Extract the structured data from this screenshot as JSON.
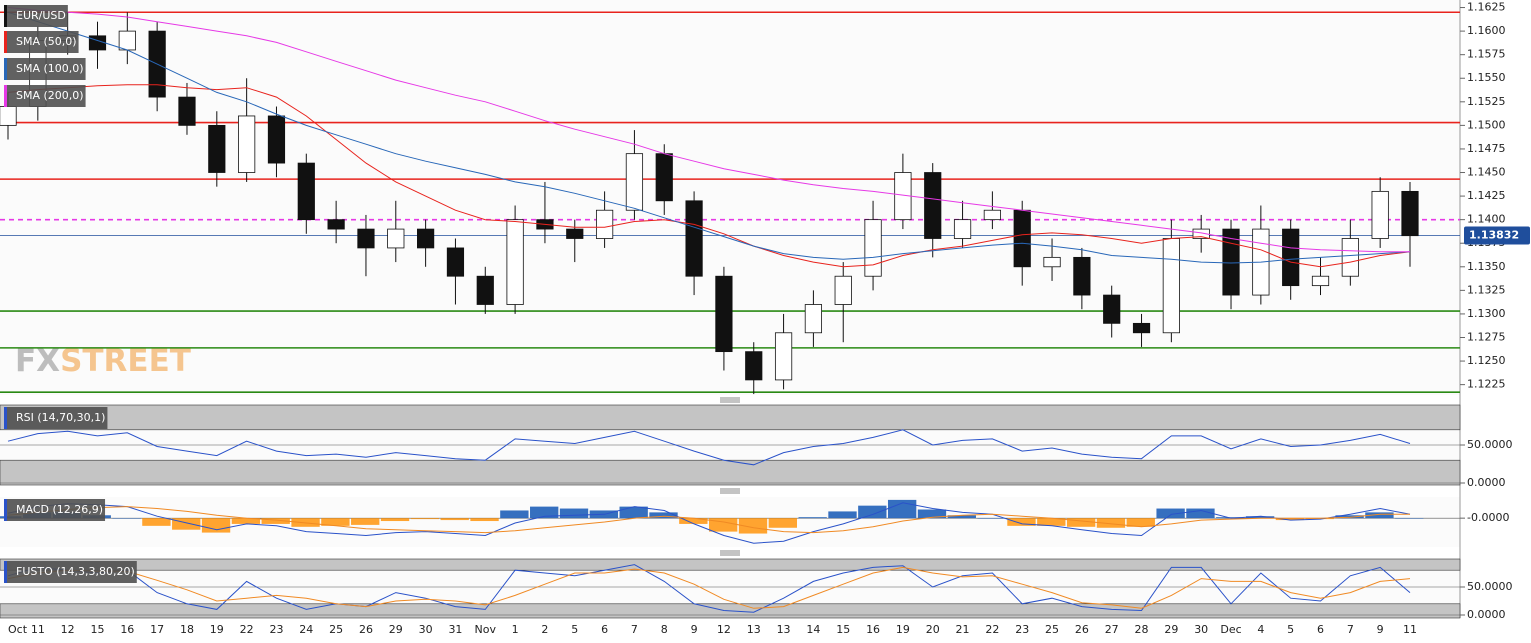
{
  "chart_data": [
    {
      "type": "candlestick",
      "title": "EUR/USD",
      "categories": [
        "Oct",
        "11",
        "12",
        "15",
        "16",
        "17",
        "18",
        "19",
        "22",
        "23",
        "24",
        "25",
        "26",
        "29",
        "30",
        "31",
        "Nov",
        "1",
        "2",
        "5",
        "6",
        "7",
        "8",
        "9",
        "12",
        "13",
        "13",
        "14",
        "15",
        "16",
        "19",
        "20",
        "21",
        "22",
        "23",
        "25",
        "26",
        "27",
        "28",
        "29",
        "30",
        "Dec",
        "4",
        "5",
        "6",
        "7",
        "9",
        "11"
      ],
      "open": [
        1.15,
        1.152,
        1.159,
        1.1595,
        1.158,
        1.16,
        1.153,
        1.15,
        1.145,
        1.151,
        1.146,
        1.14,
        1.139,
        1.137,
        1.139,
        1.137,
        1.134,
        1.131,
        1.14,
        1.139,
        1.138,
        1.141,
        1.147,
        1.142,
        1.134,
        1.126,
        1.123,
        1.128,
        1.131,
        1.134,
        1.14,
        1.145,
        1.138,
        1.14,
        1.141,
        1.135,
        1.136,
        1.132,
        1.129,
        1.128,
        1.138,
        1.139,
        1.132,
        1.139,
        1.133,
        1.134,
        1.138,
        1.143
      ],
      "high": [
        1.1535,
        1.1605,
        1.162,
        1.161,
        1.162,
        1.161,
        1.1545,
        1.1515,
        1.155,
        1.152,
        1.147,
        1.142,
        1.1405,
        1.142,
        1.14,
        1.138,
        1.135,
        1.1415,
        1.144,
        1.14,
        1.143,
        1.1495,
        1.148,
        1.143,
        1.135,
        1.127,
        1.13,
        1.1325,
        1.1355,
        1.142,
        1.147,
        1.146,
        1.142,
        1.143,
        1.142,
        1.138,
        1.137,
        1.133,
        1.13,
        1.14,
        1.1405,
        1.14,
        1.1415,
        1.14,
        1.136,
        1.14,
        1.1445,
        1.144
      ],
      "low": [
        1.1485,
        1.1505,
        1.1575,
        1.156,
        1.1565,
        1.1515,
        1.149,
        1.1435,
        1.144,
        1.1445,
        1.1385,
        1.1375,
        1.134,
        1.1355,
        1.135,
        1.131,
        1.13,
        1.13,
        1.1375,
        1.1355,
        1.137,
        1.14,
        1.1405,
        1.132,
        1.124,
        1.1215,
        1.122,
        1.1265,
        1.127,
        1.1325,
        1.139,
        1.136,
        1.137,
        1.139,
        1.133,
        1.1335,
        1.1305,
        1.1275,
        1.1265,
        1.127,
        1.1365,
        1.1305,
        1.131,
        1.1315,
        1.132,
        1.133,
        1.137,
        1.135
      ],
      "close": [
        1.152,
        1.159,
        1.1595,
        1.158,
        1.16,
        1.153,
        1.15,
        1.145,
        1.151,
        1.146,
        1.14,
        1.139,
        1.137,
        1.139,
        1.137,
        1.134,
        1.131,
        1.14,
        1.139,
        1.138,
        1.141,
        1.147,
        1.142,
        1.134,
        1.126,
        1.123,
        1.128,
        1.131,
        1.134,
        1.14,
        1.145,
        1.138,
        1.14,
        1.141,
        1.135,
        1.136,
        1.132,
        1.129,
        1.128,
        1.138,
        1.139,
        1.132,
        1.139,
        1.133,
        1.134,
        1.138,
        1.143,
        1.1383
      ],
      "up_color": "#ffffff",
      "down_color": "#111111",
      "series": [
        {
          "name": "SMA (50,0)",
          "color": "#e8231d",
          "values": [
            1.1535,
            1.1538,
            1.154,
            1.1542,
            1.1543,
            1.1543,
            1.154,
            1.1538,
            1.154,
            1.153,
            1.151,
            1.1485,
            1.146,
            1.144,
            1.1425,
            1.141,
            1.14,
            1.1398,
            1.1395,
            1.1392,
            1.1392,
            1.1398,
            1.14,
            1.1395,
            1.1385,
            1.1372,
            1.1362,
            1.1355,
            1.135,
            1.1352,
            1.1362,
            1.1368,
            1.1372,
            1.1378,
            1.1384,
            1.1386,
            1.1384,
            1.138,
            1.1375,
            1.138,
            1.1382,
            1.1375,
            1.1368,
            1.1355,
            1.135,
            1.1355,
            1.1362,
            1.1366
          ]
        },
        {
          "name": "SMA (100,0)",
          "color": "#2867b8",
          "values": [
            1.162,
            1.161,
            1.16,
            1.159,
            1.158,
            1.1565,
            1.155,
            1.1535,
            1.1525,
            1.1512,
            1.15,
            1.149,
            1.148,
            1.147,
            1.1462,
            1.1455,
            1.1448,
            1.144,
            1.1435,
            1.1428,
            1.142,
            1.1412,
            1.1402,
            1.1392,
            1.1382,
            1.1372,
            1.1364,
            1.136,
            1.1358,
            1.136,
            1.1364,
            1.1367,
            1.137,
            1.1373,
            1.1375,
            1.1372,
            1.1368,
            1.1362,
            1.136,
            1.1358,
            1.1355,
            1.1354,
            1.1355,
            1.1358,
            1.136,
            1.1362,
            1.1364,
            1.1366
          ]
        },
        {
          "name": "SMA (200,0)",
          "color": "#e639e6",
          "values": [
            1.1625,
            1.1622,
            1.162,
            1.1618,
            1.1615,
            1.161,
            1.1605,
            1.16,
            1.1595,
            1.1588,
            1.1578,
            1.1568,
            1.1558,
            1.1548,
            1.154,
            1.1532,
            1.1525,
            1.1515,
            1.1505,
            1.1496,
            1.1488,
            1.148,
            1.147,
            1.1462,
            1.1454,
            1.1448,
            1.1442,
            1.1437,
            1.1433,
            1.143,
            1.1426,
            1.1422,
            1.1418,
            1.1414,
            1.141,
            1.1406,
            1.1402,
            1.1398,
            1.1394,
            1.139,
            1.1386,
            1.138,
            1.1375,
            1.137,
            1.1368,
            1.1367,
            1.1366,
            1.1366
          ]
        }
      ],
      "levels": [
        {
          "value": 1.162,
          "color": "#e8231d",
          "style": "solid"
        },
        {
          "value": 1.1503,
          "color": "#e8231d",
          "style": "solid"
        },
        {
          "value": 1.1443,
          "color": "#e8231d",
          "style": "solid"
        },
        {
          "value": 1.14,
          "color": "#e639e6",
          "style": "dashed"
        },
        {
          "value": 1.1303,
          "color": "#2a8a14",
          "style": "solid"
        },
        {
          "value": 1.1264,
          "color": "#2a8a14",
          "style": "solid"
        },
        {
          "value": 1.1217,
          "color": "#2a8a14",
          "style": "solid"
        }
      ],
      "last_price": 1.13832,
      "last_color": "#1f4e9c",
      "ylim": [
        1.1214,
        1.1633
      ],
      "yticks": [
        {
          "value": 1.1225,
          "label": "1.1225"
        },
        {
          "value": 1.125,
          "label": "1.1250"
        },
        {
          "value": 1.1275,
          "label": "1.1275"
        },
        {
          "value": 1.13,
          "label": "1.1300"
        },
        {
          "value": 1.1325,
          "label": "1.1325"
        },
        {
          "value": 1.135,
          "label": "1.1350"
        },
        {
          "value": 1.1375,
          "label": "1.1375"
        },
        {
          "value": 1.14,
          "label": "1.1400"
        },
        {
          "value": 1.1425,
          "label": "1.1425"
        },
        {
          "value": 1.145,
          "label": "1.1450"
        },
        {
          "value": 1.1475,
          "label": "1.1475"
        },
        {
          "value": 1.15,
          "label": "1.1500"
        },
        {
          "value": 1.1525,
          "label": "1.1525"
        },
        {
          "value": 1.155,
          "label": "1.1550"
        },
        {
          "value": 1.1575,
          "label": "1.1575"
        },
        {
          "value": 1.16,
          "label": "1.1600"
        },
        {
          "value": 1.1625,
          "label": "1.1625"
        }
      ],
      "watermark": [
        "FX",
        "STREET"
      ]
    },
    {
      "type": "line",
      "title": "RSI (14,70,30,1)",
      "series": [
        {
          "color": "#2a52c9",
          "values": [
            55,
            65,
            68,
            62,
            66,
            48,
            42,
            36,
            55,
            42,
            36,
            38,
            34,
            40,
            36,
            32,
            30,
            58,
            55,
            52,
            60,
            68,
            55,
            42,
            30,
            24,
            40,
            48,
            52,
            60,
            70,
            50,
            56,
            58,
            42,
            46,
            38,
            34,
            32,
            62,
            62,
            45,
            58,
            48,
            50,
            56,
            64,
            52
          ]
        }
      ],
      "upper": 70,
      "lower": 30,
      "ylim": [
        0,
        100
      ],
      "yticks": [
        {
          "value": 50,
          "label": "50.0000"
        },
        {
          "value": 0,
          "label": "0.0000"
        }
      ]
    },
    {
      "type": "macd",
      "title": "MACD (12,26,9)",
      "histogram": [
        0.0002,
        0.0006,
        0.0006,
        0.0003,
        0.0,
        -0.0008,
        -0.0012,
        -0.0015,
        -0.0006,
        -0.0006,
        -0.0009,
        -0.0008,
        -0.0007,
        -0.0003,
        -0.0001,
        -0.0002,
        -0.0003,
        0.0008,
        0.0012,
        0.001,
        0.0008,
        0.0012,
        0.0006,
        -0.0006,
        -0.0014,
        -0.0016,
        -0.001,
        0.0001,
        0.0007,
        0.0013,
        0.0019,
        0.0009,
        0.0003,
        0.0,
        -0.0008,
        -0.0008,
        -0.0009,
        -0.001,
        -0.0009,
        0.001,
        0.001,
        0.0001,
        0.0002,
        -0.0002,
        -0.0001,
        0.0003,
        0.0006,
        0.0
      ],
      "positive_color": "#1f5fb8",
      "negative_color": "#ff9a1a",
      "series": [
        {
          "color": "#2a52c9",
          "values": [
            0.0005,
            0.0012,
            0.0015,
            0.0014,
            0.0012,
            0.0002,
            -0.0005,
            -0.0012,
            -0.0006,
            -0.0008,
            -0.0014,
            -0.0016,
            -0.0018,
            -0.0015,
            -0.0014,
            -0.0016,
            -0.0018,
            -0.0005,
            0.0002,
            0.0003,
            0.0004,
            0.0012,
            0.0008,
            -0.0006,
            -0.0018,
            -0.0026,
            -0.0024,
            -0.0014,
            -0.0006,
            0.0004,
            0.0016,
            0.001,
            0.0006,
            0.0004,
            -0.0006,
            -0.0008,
            -0.0012,
            -0.0016,
            -0.0018,
            0.0004,
            0.0008,
            0.0,
            0.0002,
            -0.0002,
            -0.0001,
            0.0004,
            0.001,
            0.0004
          ]
        },
        {
          "color": "#f08a24",
          "values": [
            0.0003,
            0.0006,
            0.0009,
            0.0011,
            0.0012,
            0.001,
            0.0007,
            0.0003,
            0.0,
            -0.0002,
            -0.0005,
            -0.0008,
            -0.0011,
            -0.0012,
            -0.0013,
            -0.0014,
            -0.0015,
            -0.0013,
            -0.001,
            -0.0007,
            -0.0004,
            0.0,
            0.0002,
            0.0,
            -0.0004,
            -0.001,
            -0.0014,
            -0.0015,
            -0.0013,
            -0.0009,
            -0.0003,
            0.0001,
            0.0003,
            0.0004,
            0.0002,
            0.0,
            -0.0003,
            -0.0006,
            -0.0009,
            -0.0006,
            -0.0002,
            -0.0001,
            0.0,
            0.0,
            0.0,
            0.0001,
            0.0004,
            0.0004
          ]
        }
      ],
      "ylim": [
        -0.003,
        0.0022
      ],
      "yticks": [
        {
          "value": 0,
          "label": "-0.0000"
        }
      ]
    },
    {
      "type": "line",
      "title": "FUSTO (14,3,3,80,20)",
      "series": [
        {
          "color": "#2a52c9",
          "values": [
            70,
            85,
            80,
            75,
            80,
            40,
            20,
            10,
            60,
            30,
            10,
            20,
            15,
            40,
            30,
            15,
            10,
            80,
            75,
            70,
            80,
            90,
            60,
            20,
            8,
            5,
            30,
            60,
            75,
            85,
            88,
            50,
            70,
            75,
            20,
            30,
            15,
            10,
            8,
            85,
            85,
            20,
            75,
            30,
            25,
            70,
            85,
            40
          ]
        },
        {
          "color": "#f08a24",
          "values": [
            65,
            75,
            80,
            78,
            78,
            62,
            45,
            25,
            30,
            35,
            30,
            20,
            15,
            25,
            28,
            25,
            18,
            35,
            55,
            75,
            75,
            82,
            75,
            55,
            28,
            12,
            15,
            35,
            55,
            75,
            85,
            75,
            68,
            70,
            55,
            40,
            22,
            18,
            12,
            35,
            65,
            60,
            60,
            40,
            30,
            40,
            60,
            65
          ]
        }
      ],
      "upper": 80,
      "lower": 20,
      "ylim": [
        0,
        100
      ],
      "yticks": [
        {
          "value": 50,
          "label": "50.0000"
        },
        {
          "value": 0,
          "label": "0.0000"
        }
      ]
    }
  ]
}
